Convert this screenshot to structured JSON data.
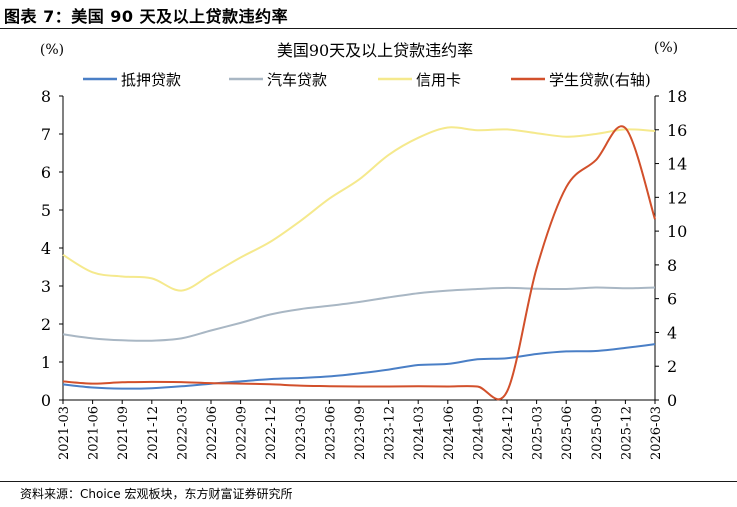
{
  "figure_title": "图表 7：美国 90 天及以上贷款违约率",
  "source": "资料来源：Choice 宏观板块，东方财富证券研究所",
  "chart_data": {
    "type": "line",
    "title": "美国90天及以上贷款违约率",
    "left_unit": "(%)",
    "right_unit": "(%)",
    "legend_position": "top",
    "grid": false,
    "ylim_left": [
      0,
      8
    ],
    "ylim_right": [
      0,
      18
    ],
    "left_ticks": [
      0,
      1,
      2,
      3,
      4,
      5,
      6,
      7,
      8
    ],
    "right_ticks": [
      0,
      2,
      4,
      6,
      8,
      10,
      12,
      14,
      16,
      18
    ],
    "x_ticks": [
      "2021-03",
      "2021-06",
      "2021-09",
      "2021-12",
      "2022-03",
      "2022-06",
      "2022-09",
      "2022-12",
      "2023-03",
      "2023-06",
      "2023-09",
      "2023-12",
      "2024-03",
      "2024-06",
      "2024-09",
      "2024-12",
      "2025-03",
      "2025-06",
      "2025-09",
      "2025-12",
      "2026-03"
    ],
    "series": [
      {
        "name": "抵押贷款",
        "axis": "left",
        "color": "#4a7fc6",
        "values": [
          0.41,
          0.33,
          0.3,
          0.31,
          0.36,
          0.43,
          0.49,
          0.55,
          0.58,
          0.62,
          0.7,
          0.8,
          0.92,
          0.95,
          1.07,
          1.1,
          1.21,
          1.28,
          1.29,
          1.37,
          1.47
        ]
      },
      {
        "name": "汽车贷款",
        "axis": "left",
        "color": "#a9b7c4",
        "values": [
          1.73,
          1.62,
          1.57,
          1.56,
          1.62,
          1.83,
          2.03,
          2.25,
          2.39,
          2.48,
          2.58,
          2.7,
          2.81,
          2.88,
          2.92,
          2.95,
          2.93,
          2.92,
          2.96,
          2.94,
          2.96
        ]
      },
      {
        "name": "信用卡",
        "axis": "left",
        "color": "#f5e98d",
        "values": [
          3.82,
          3.36,
          3.25,
          3.2,
          2.88,
          3.3,
          3.75,
          4.16,
          4.7,
          5.3,
          5.8,
          6.45,
          6.9,
          7.17,
          7.1,
          7.12,
          7.02,
          6.93,
          7.0,
          7.12,
          7.08
        ]
      },
      {
        "name": "学生贷款(右轴)",
        "axis": "right",
        "color": "#d2502b",
        "values": [
          1.1,
          0.97,
          1.05,
          1.07,
          1.06,
          1.0,
          0.97,
          0.93,
          0.85,
          0.82,
          0.8,
          0.8,
          0.81,
          0.8,
          0.8,
          0.5,
          7.8,
          12.6,
          14.2,
          16.1,
          10.7
        ]
      }
    ]
  }
}
